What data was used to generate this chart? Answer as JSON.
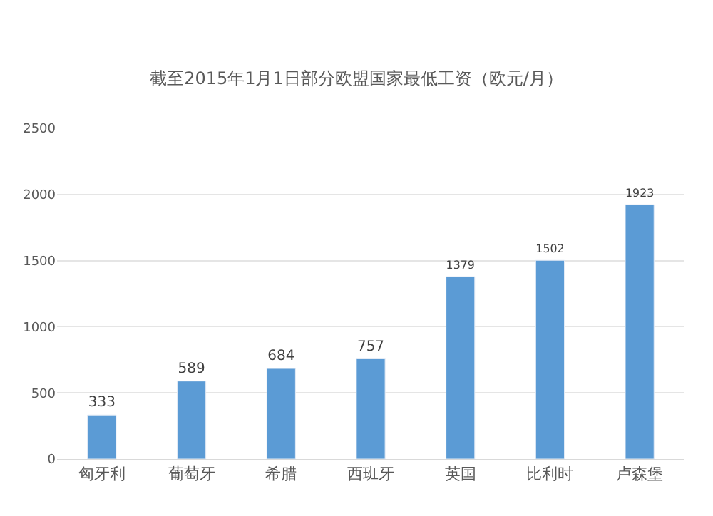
{
  "chart_data": {
    "type": "bar",
    "title": "截至2015年1月1日部分欧盟国家最低工资（欧元/月）",
    "categories": [
      "匈牙利",
      "葡萄牙",
      "希腊",
      "西班牙",
      "英国",
      "比利时",
      "卢森堡"
    ],
    "values": [
      333,
      589,
      684,
      757,
      1379,
      1502,
      1923
    ],
    "color": "#5b9bd5",
    "ylim": [
      0,
      2500
    ],
    "yticks": [
      0,
      500,
      1000,
      1500,
      2000,
      2500
    ],
    "grid": "y",
    "data_labels": true
  }
}
